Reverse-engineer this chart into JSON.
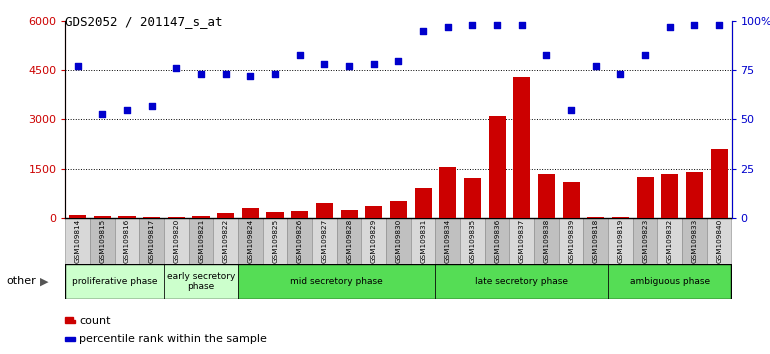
{
  "title": "GDS2052 / 201147_s_at",
  "samples": [
    "GSM109814",
    "GSM109815",
    "GSM109816",
    "GSM109817",
    "GSM109820",
    "GSM109821",
    "GSM109822",
    "GSM109824",
    "GSM109825",
    "GSM109826",
    "GSM109827",
    "GSM109828",
    "GSM109829",
    "GSM109830",
    "GSM109831",
    "GSM109834",
    "GSM109835",
    "GSM109836",
    "GSM109837",
    "GSM109838",
    "GSM109839",
    "GSM109818",
    "GSM109819",
    "GSM109823",
    "GSM109832",
    "GSM109833",
    "GSM109840"
  ],
  "counts": [
    80,
    50,
    50,
    30,
    30,
    40,
    150,
    300,
    180,
    200,
    450,
    250,
    350,
    500,
    900,
    1550,
    1200,
    3100,
    4300,
    1350,
    1100,
    30,
    30,
    1250,
    1350,
    1400,
    2100
  ],
  "percentiles_pct": [
    77,
    53,
    55,
    57,
    76,
    73,
    73,
    72,
    73,
    83,
    78,
    77,
    78,
    80,
    95,
    97,
    98,
    98,
    98,
    83,
    55,
    77,
    73,
    83,
    97,
    98,
    98
  ],
  "bar_color": "#cc0000",
  "scatter_color": "#0000cc",
  "ylim_left": [
    0,
    6000
  ],
  "ylim_right": [
    0,
    100
  ],
  "yticks_left": [
    0,
    1500,
    3000,
    4500,
    6000
  ],
  "ytick_labels_left": [
    "0",
    "1500",
    "3000",
    "4500",
    "6000"
  ],
  "yticks_right": [
    0,
    25,
    50,
    75,
    100
  ],
  "ytick_labels_right": [
    "0",
    "25",
    "50",
    "75",
    "100%"
  ],
  "phases": [
    {
      "label": "proliferative phase",
      "start": 0,
      "end": 4,
      "color": "#ccffcc"
    },
    {
      "label": "early secretory\nphase",
      "start": 4,
      "end": 7,
      "color": "#ccffcc"
    },
    {
      "label": "mid secretory phase",
      "start": 7,
      "end": 15,
      "color": "#55dd55"
    },
    {
      "label": "late secretory phase",
      "start": 15,
      "end": 22,
      "color": "#55dd55"
    },
    {
      "label": "ambiguous phase",
      "start": 22,
      "end": 27,
      "color": "#55dd55"
    }
  ],
  "other_label": "other",
  "legend_count_label": "count",
  "legend_percentile_label": "percentile rank within the sample",
  "plot_bg": "#ffffff",
  "tick_bg_light": "#d8d8d8",
  "tick_bg_dark": "#c0c0c0"
}
